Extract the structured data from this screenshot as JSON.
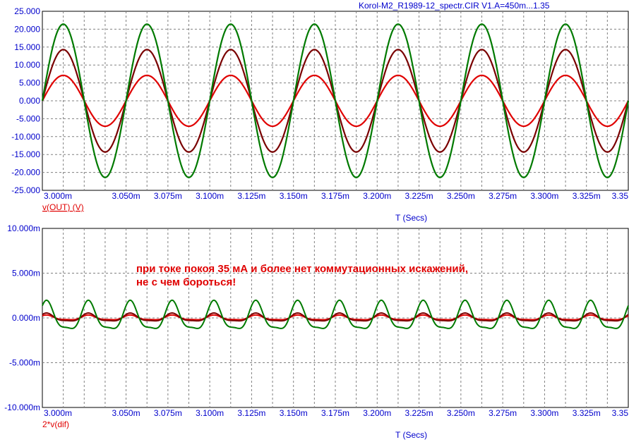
{
  "window": {
    "title": "Korol-M2_R1989-12_spectr.CIR V1.A=450m...1.35"
  },
  "annotation": {
    "line1": "при токе покоя 35 мА и более нет коммутационных искажений,",
    "line2": "не с чем бороться!"
  },
  "colors": {
    "axis_text": "#0000cc",
    "label_red": "#e00000",
    "grid": "#808080",
    "series_low": "#e00000",
    "series_mid": "#7a0000",
    "series_high": "#007a00"
  },
  "chart_data": [
    {
      "type": "line",
      "plot_label": "v(OUT) (V)",
      "xlabel": "T (Secs)",
      "xlim": [
        0.003,
        0.00335
      ],
      "ylim": [
        -25,
        25
      ],
      "x_ticks": [
        "3.000m",
        "3.050m",
        "3.075m",
        "3.100m",
        "3.125m",
        "3.150m",
        "3.175m",
        "3.200m",
        "3.225m",
        "3.250m",
        "3.275m",
        "3.300m",
        "3.325m",
        "3.35"
      ],
      "y_ticks": [
        "25.000",
        "20.000",
        "15.000",
        "10.000",
        "5.000",
        "0.000",
        "-5.000",
        "-10.000",
        "-15.000",
        "-20.000",
        "-25.000"
      ],
      "grid": true,
      "waveform": "sine",
      "frequency_hz": 20000,
      "series": [
        {
          "amplitude": 7.1,
          "color": "#e00000"
        },
        {
          "amplitude": 14.3,
          "color": "#7a0000"
        },
        {
          "amplitude": 21.4,
          "color": "#007a00"
        }
      ]
    },
    {
      "type": "line",
      "plot_label": "2*v(dif)",
      "xlabel": "T (Secs)",
      "xlim": [
        0.003,
        0.00335
      ],
      "ylim": [
        -0.01,
        0.01
      ],
      "x_ticks": [
        "3.000m",
        "3.050m",
        "3.075m",
        "3.100m",
        "3.125m",
        "3.150m",
        "3.175m",
        "3.200m",
        "3.225m",
        "3.250m",
        "3.275m",
        "3.300m",
        "3.325m",
        "3.35"
      ],
      "y_ticks": [
        "10.000m",
        "5.000m",
        "0.000m",
        "-5.000m",
        "-10.000m"
      ],
      "grid": true,
      "waveform": "second harmonic of the output",
      "frequency_hz": 40000,
      "series": [
        {
          "amplitude": 0.0003,
          "color": "#e00000"
        },
        {
          "amplitude": 0.0005,
          "color": "#7a0000"
        },
        {
          "amplitude": 0.0018,
          "color": "#007a00"
        }
      ]
    }
  ]
}
